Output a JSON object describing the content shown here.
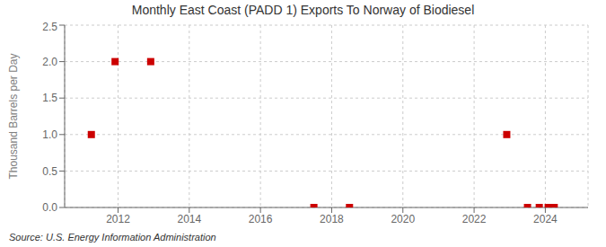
{
  "chart_data": {
    "type": "scatter",
    "title": "Monthly East Coast (PADD 1) Exports To Norway of Biodiesel",
    "ylabel": "Thousand Barrels per Day",
    "annotations": [
      "Source: U.S. Energy Information Administration"
    ],
    "x": [
      2011.25,
      2011.917,
      2012.917,
      2017.5,
      2018.5,
      2022.917,
      2023.5,
      2023.83,
      2024.08,
      2024.25
    ],
    "values": [
      1.0,
      2.0,
      2.0,
      0.0,
      0.0,
      1.0,
      0.0,
      0.0,
      0.0,
      0.0
    ],
    "color": "#cc0000",
    "marker": "square",
    "xlim": [
      2010.5,
      2025.2
    ],
    "ylim": [
      0,
      2.5
    ],
    "xticks": [
      2012,
      2014,
      2016,
      2018,
      2020,
      2022,
      2024
    ],
    "yticks": [
      {
        "value": 0,
        "label": "0.0"
      },
      0.5,
      {
        "value": 1,
        "label": "1.0"
      },
      1.5,
      {
        "value": 2,
        "label": "2.0"
      },
      2.5
    ],
    "grid": true
  }
}
